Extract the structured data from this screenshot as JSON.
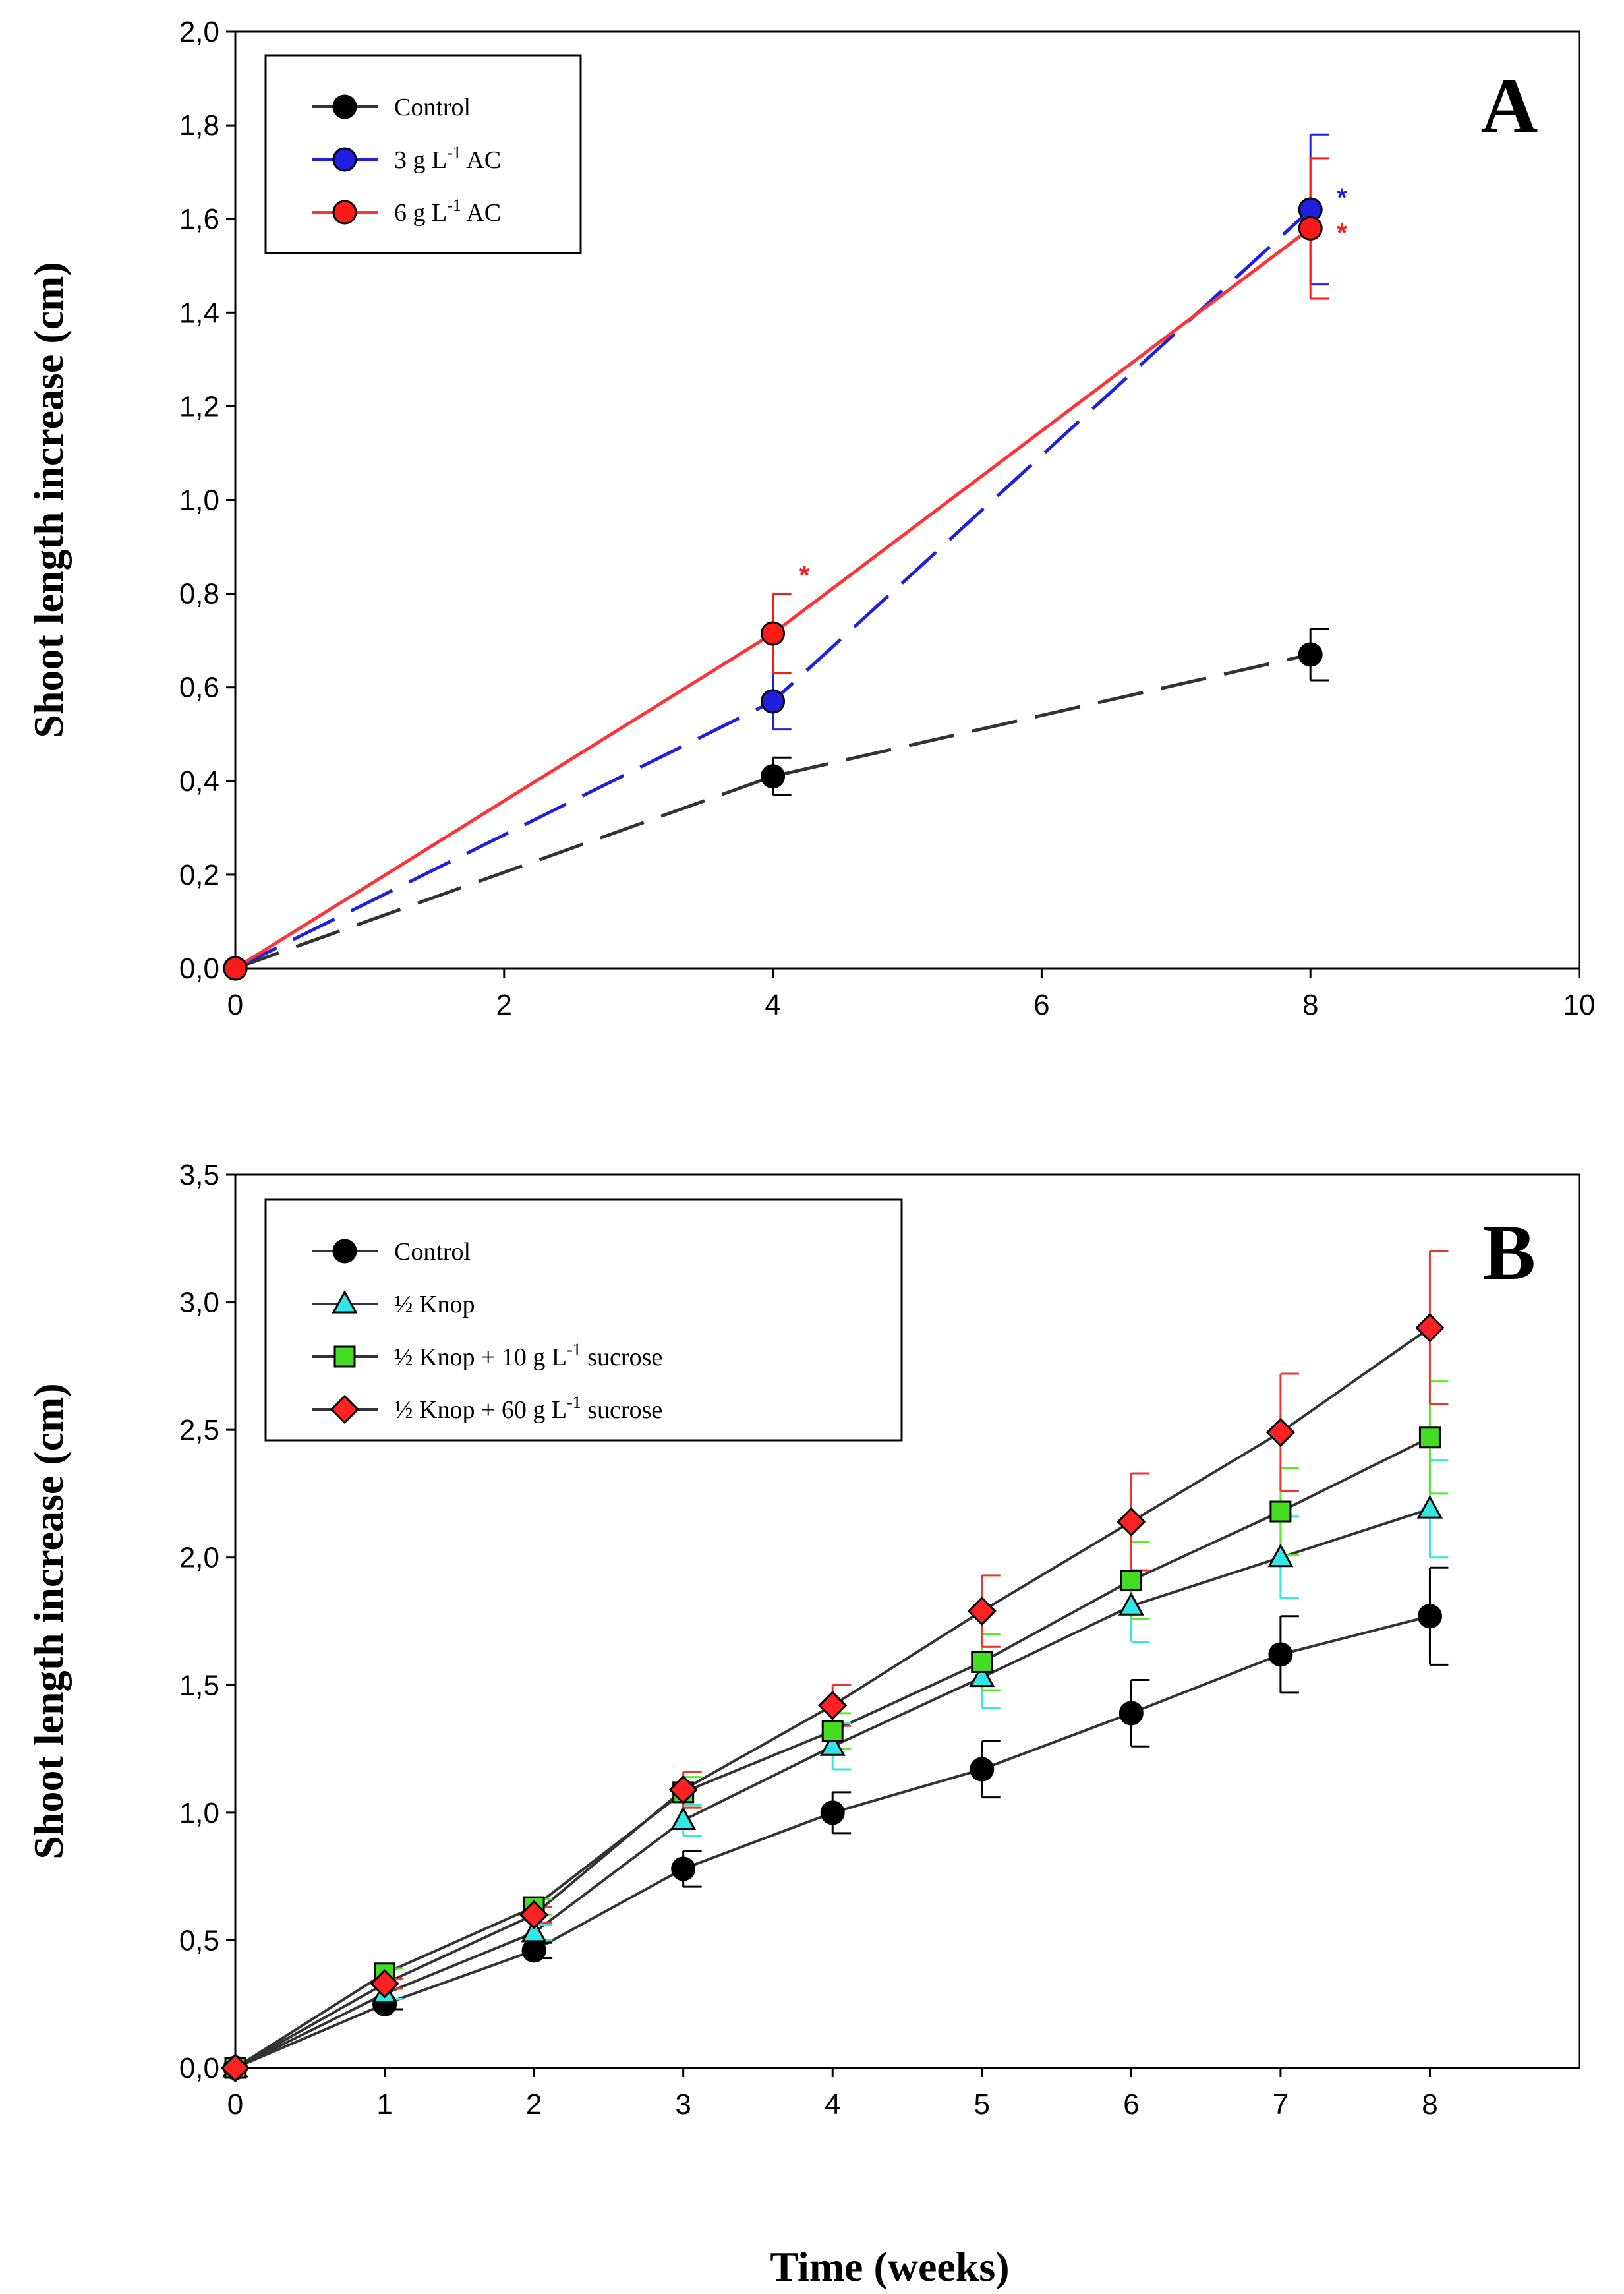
{
  "figure": {
    "xlabel_shared": "Time (weeks)"
  },
  "chart_data": [
    {
      "panel": "A",
      "type": "line",
      "ylabel": "Shoot length increase (cm)",
      "xlim": [
        0,
        10
      ],
      "ylim": [
        0,
        2.0
      ],
      "xticks": [
        0,
        2,
        4,
        6,
        8,
        10
      ],
      "xtick_labels": [
        "0",
        "2",
        "4",
        "6",
        "8",
        "10"
      ],
      "yticks": [
        0,
        0.2,
        0.4,
        0.6,
        0.8,
        1.0,
        1.2,
        1.4,
        1.6,
        1.8,
        2.0
      ],
      "ytick_labels": [
        "0,0",
        "0,2",
        "0,4",
        "0,6",
        "0,8",
        "1,0",
        "1,2",
        "1,4",
        "1,6",
        "1,8",
        "2,0"
      ],
      "legend_position": "top-left",
      "series": [
        {
          "name": "Control",
          "label_main": "Control",
          "label_sup": "",
          "label_tail": "",
          "color": "#000000",
          "line_color": "#333333",
          "dash": "long",
          "marker": "circle",
          "x": [
            0,
            4,
            8
          ],
          "y": [
            0,
            0.41,
            0.67
          ],
          "err": [
            0,
            0.04,
            0.055
          ],
          "stars": []
        },
        {
          "name": "3 g L-1 AC",
          "label_main": "3 g L",
          "label_sup": "-1",
          "label_tail": " AC",
          "color": "#1f1fe0",
          "line_color": "#1f1fe0",
          "dash": "long",
          "marker": "circle",
          "x": [
            0,
            4,
            8
          ],
          "y": [
            0,
            0.57,
            1.62
          ],
          "err": [
            0,
            0.06,
            0.16
          ],
          "stars": [
            8
          ]
        },
        {
          "name": "6 g L-1 AC",
          "label_main": "6 g L",
          "label_sup": "-1",
          "label_tail": " AC",
          "color": "#ff1a1a",
          "line_color": "#ff3333",
          "dash": "solid",
          "marker": "circle",
          "x": [
            0,
            4,
            8
          ],
          "y": [
            0,
            0.715,
            1.58
          ],
          "err": [
            0,
            0.085,
            0.15
          ],
          "stars": [
            4,
            8
          ]
        }
      ],
      "star_symbol": "*"
    },
    {
      "panel": "B",
      "type": "line",
      "ylabel": "Shoot length increase (cm)",
      "xlim": [
        0,
        9
      ],
      "ylim": [
        0,
        3.5
      ],
      "xticks": [
        0,
        1,
        2,
        3,
        4,
        5,
        6,
        7,
        8
      ],
      "xtick_labels": [
        "0",
        "1",
        "2",
        "3",
        "4",
        "5",
        "6",
        "7",
        "8"
      ],
      "yticks": [
        0,
        0.5,
        1.0,
        1.5,
        2.0,
        2.5,
        3.0,
        3.5
      ],
      "ytick_labels": [
        "0,0",
        "0,5",
        "1,0",
        "1,5",
        "2,0",
        "2,5",
        "3,0",
        "3,5"
      ],
      "legend_position": "top-left",
      "series": [
        {
          "name": "Control",
          "label_main": "Control",
          "label_sup": "",
          "label_tail": "",
          "color": "#000000",
          "err_color": "#000000",
          "marker": "circle",
          "x": [
            0,
            1,
            2,
            3,
            4,
            5,
            6,
            7,
            8
          ],
          "y": [
            0,
            0.25,
            0.46,
            0.78,
            1.0,
            1.17,
            1.39,
            1.62,
            1.77
          ],
          "err": [
            0,
            0.02,
            0.03,
            0.07,
            0.08,
            0.11,
            0.13,
            0.15,
            0.19
          ]
        },
        {
          "name": "½ Knop",
          "label_main": "½ Knop",
          "label_sup": "",
          "label_tail": "",
          "color": "#33e6e6",
          "err_color": "#33e6e6",
          "marker": "triangle",
          "x": [
            0,
            1,
            2,
            3,
            4,
            5,
            6,
            7,
            8
          ],
          "y": [
            0,
            0.29,
            0.53,
            0.97,
            1.26,
            1.53,
            1.81,
            2.0,
            2.19
          ],
          "err": [
            0,
            0.02,
            0.03,
            0.06,
            0.09,
            0.12,
            0.14,
            0.16,
            0.19
          ]
        },
        {
          "name": "½ Knop + 10 g L-1 sucrose",
          "label_main": "½ Knop + 10 g L",
          "label_sup": "-1",
          "label_tail": " sucrose",
          "color": "#44dd22",
          "err_color": "#55ee22",
          "marker": "square",
          "x": [
            0,
            1,
            2,
            3,
            4,
            5,
            6,
            7,
            8
          ],
          "y": [
            0,
            0.37,
            0.63,
            1.08,
            1.32,
            1.59,
            1.91,
            2.18,
            2.47
          ],
          "err": [
            0,
            0.02,
            0.03,
            0.06,
            0.07,
            0.11,
            0.15,
            0.17,
            0.22
          ]
        },
        {
          "name": "½ Knop + 60 g L-1 sucrose",
          "label_main": "½ Knop + 60 g L",
          "label_sup": "-1",
          "label_tail": " sucrose",
          "color": "#ff2222",
          "err_color": "#ee3333",
          "marker": "diamond",
          "x": [
            0,
            1,
            2,
            3,
            4,
            5,
            6,
            7,
            8
          ],
          "y": [
            0,
            0.33,
            0.6,
            1.09,
            1.42,
            1.79,
            2.14,
            2.49,
            2.9
          ],
          "err": [
            0,
            0.02,
            0.03,
            0.07,
            0.08,
            0.14,
            0.19,
            0.23,
            0.3
          ]
        }
      ]
    }
  ]
}
